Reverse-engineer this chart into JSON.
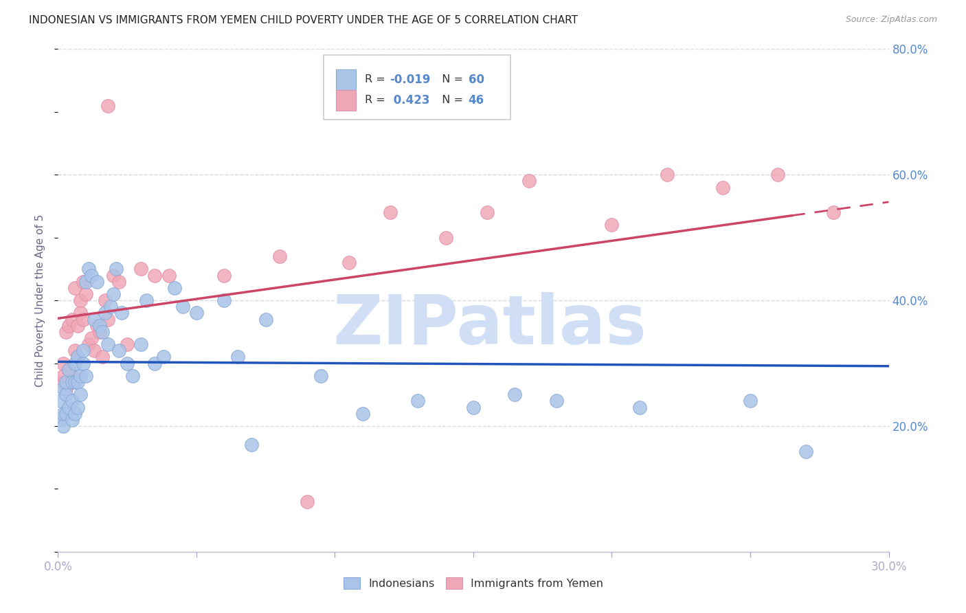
{
  "title": "INDONESIAN VS IMMIGRANTS FROM YEMEN CHILD POVERTY UNDER THE AGE OF 5 CORRELATION CHART",
  "source": "Source: ZipAtlas.com",
  "ylabel": "Child Poverty Under the Age of 5",
  "blue_color": "#aac4e8",
  "pink_color": "#f0a8b8",
  "line_blue": "#2255bb",
  "line_pink": "#cc4466",
  "axis_label_color": "#5588cc",
  "r_value_blue": -0.019,
  "r_value_pink": 0.423,
  "n_blue": 60,
  "n_pink": 46,
  "xlim": [
    0.0,
    0.3
  ],
  "ylim": [
    0.0,
    0.8
  ],
  "watermark": "ZIPatlas",
  "watermark_color": "#d0dff5",
  "background_color": "#ffffff",
  "grid_color": "#d8d8e8",
  "blue_x": [
    0.001,
    0.001,
    0.002,
    0.002,
    0.002,
    0.003,
    0.003,
    0.003,
    0.004,
    0.004,
    0.005,
    0.005,
    0.005,
    0.006,
    0.006,
    0.006,
    0.007,
    0.007,
    0.007,
    0.008,
    0.008,
    0.009,
    0.009,
    0.01,
    0.01,
    0.011,
    0.012,
    0.013,
    0.014,
    0.015,
    0.016,
    0.017,
    0.018,
    0.019,
    0.02,
    0.021,
    0.022,
    0.023,
    0.025,
    0.027,
    0.03,
    0.032,
    0.035,
    0.038,
    0.042,
    0.045,
    0.05,
    0.06,
    0.065,
    0.07,
    0.075,
    0.095,
    0.11,
    0.13,
    0.15,
    0.165,
    0.18,
    0.21,
    0.25,
    0.27
  ],
  "blue_y": [
    0.21,
    0.24,
    0.2,
    0.22,
    0.26,
    0.22,
    0.25,
    0.27,
    0.23,
    0.29,
    0.21,
    0.24,
    0.27,
    0.22,
    0.27,
    0.3,
    0.23,
    0.27,
    0.31,
    0.25,
    0.28,
    0.3,
    0.32,
    0.28,
    0.43,
    0.45,
    0.44,
    0.37,
    0.43,
    0.36,
    0.35,
    0.38,
    0.33,
    0.39,
    0.41,
    0.45,
    0.32,
    0.38,
    0.3,
    0.28,
    0.33,
    0.4,
    0.3,
    0.31,
    0.42,
    0.39,
    0.38,
    0.4,
    0.31,
    0.17,
    0.37,
    0.28,
    0.22,
    0.24,
    0.23,
    0.25,
    0.24,
    0.23,
    0.24,
    0.16
  ],
  "pink_x": [
    0.001,
    0.002,
    0.002,
    0.003,
    0.003,
    0.004,
    0.004,
    0.005,
    0.005,
    0.006,
    0.006,
    0.007,
    0.007,
    0.008,
    0.008,
    0.009,
    0.009,
    0.01,
    0.011,
    0.012,
    0.013,
    0.014,
    0.015,
    0.016,
    0.017,
    0.018,
    0.02,
    0.022,
    0.025,
    0.03,
    0.035,
    0.04,
    0.06,
    0.08,
    0.09,
    0.105,
    0.12,
    0.14,
    0.155,
    0.17,
    0.2,
    0.22,
    0.24,
    0.26,
    0.28,
    0.018
  ],
  "pink_y": [
    0.27,
    0.3,
    0.28,
    0.26,
    0.35,
    0.29,
    0.36,
    0.28,
    0.37,
    0.42,
    0.32,
    0.36,
    0.31,
    0.38,
    0.4,
    0.37,
    0.43,
    0.41,
    0.33,
    0.34,
    0.32,
    0.36,
    0.35,
    0.31,
    0.4,
    0.37,
    0.44,
    0.43,
    0.33,
    0.45,
    0.44,
    0.44,
    0.44,
    0.47,
    0.08,
    0.46,
    0.54,
    0.5,
    0.54,
    0.59,
    0.52,
    0.6,
    0.58,
    0.6,
    0.54,
    0.71
  ]
}
